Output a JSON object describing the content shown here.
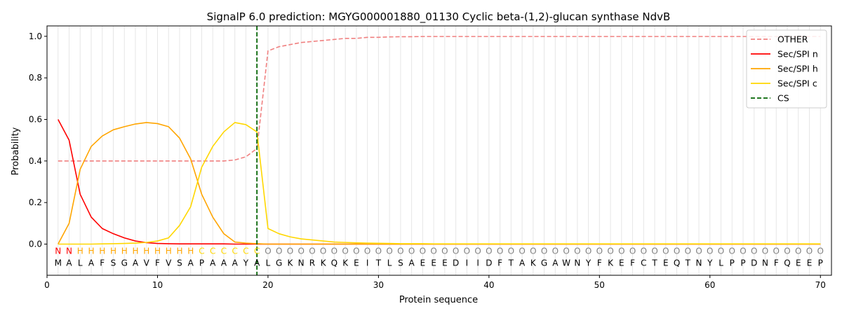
{
  "chart_data": {
    "type": "line",
    "title": "SignalP 6.0 prediction: MGYG000001880_01130 Cyclic beta-(1,2)-glucan synthase NdvB",
    "xlabel": "Protein sequence",
    "ylabel": "Probability",
    "xlim": [
      0,
      71
    ],
    "ylim": [
      -0.15,
      1.05
    ],
    "xticks": [
      0,
      10,
      20,
      30,
      40,
      50,
      60,
      70
    ],
    "yticks": [
      0.0,
      0.2,
      0.4,
      0.6,
      0.8,
      1.0
    ],
    "grid": "vertical lines at each residue position",
    "legend_position": "top-right",
    "x": [
      1,
      2,
      3,
      4,
      5,
      6,
      7,
      8,
      9,
      10,
      11,
      12,
      13,
      14,
      15,
      16,
      17,
      18,
      19,
      20,
      21,
      22,
      23,
      24,
      25,
      26,
      27,
      28,
      29,
      30,
      31,
      32,
      33,
      34,
      35,
      36,
      37,
      38,
      39,
      40,
      41,
      42,
      43,
      44,
      45,
      46,
      47,
      48,
      49,
      50,
      51,
      52,
      53,
      54,
      55,
      56,
      57,
      58,
      59,
      60,
      61,
      62,
      63,
      64,
      65,
      66,
      67,
      68,
      69,
      70
    ],
    "sequence": [
      "M",
      "A",
      "L",
      "A",
      "F",
      "S",
      "G",
      "A",
      "V",
      "F",
      "V",
      "S",
      "A",
      "P",
      "A",
      "A",
      "A",
      "Y",
      "A",
      "L",
      "G",
      "K",
      "N",
      "R",
      "K",
      "Q",
      "K",
      "E",
      "I",
      "T",
      "L",
      "S",
      "A",
      "E",
      "E",
      "E",
      "D",
      "I",
      "I",
      "D",
      "F",
      "T",
      "A",
      "K",
      "G",
      "A",
      "W",
      "N",
      "Y",
      "F",
      "K",
      "E",
      "F",
      "C",
      "T",
      "E",
      "Q",
      "T",
      "N",
      "Y",
      "L",
      "P",
      "P",
      "D",
      "N",
      "F",
      "Q",
      "E",
      "E",
      "P"
    ],
    "labels": [
      "N",
      "N",
      "H",
      "H",
      "H",
      "H",
      "H",
      "H",
      "H",
      "H",
      "H",
      "H",
      "H",
      "C",
      "C",
      "C",
      "C",
      "C",
      "C",
      "O",
      "O",
      "O",
      "O",
      "O",
      "O",
      "O",
      "O",
      "O",
      "O",
      "O",
      "O",
      "O",
      "O",
      "O",
      "O",
      "O",
      "O",
      "O",
      "O",
      "O",
      "O",
      "O",
      "O",
      "O",
      "O",
      "O",
      "O",
      "O",
      "O",
      "O",
      "O",
      "O",
      "O",
      "O",
      "O",
      "O",
      "O",
      "O",
      "O",
      "O",
      "O",
      "O",
      "O",
      "O",
      "O",
      "O",
      "O",
      "O",
      "O",
      "O"
    ],
    "label_colors": {
      "N": "#ff0000",
      "H": "#ffa500",
      "C": "#ffd700",
      "O": "#808080"
    },
    "series": [
      {
        "name": "OTHER",
        "color": "#f08080",
        "dash": "dashed",
        "values": [
          0.4,
          0.4,
          0.4,
          0.4,
          0.4,
          0.4,
          0.4,
          0.4,
          0.4,
          0.4,
          0.4,
          0.4,
          0.4,
          0.4,
          0.4,
          0.4,
          0.405,
          0.42,
          0.46,
          0.93,
          0.95,
          0.96,
          0.97,
          0.975,
          0.98,
          0.985,
          0.99,
          0.99,
          0.995,
          0.995,
          0.997,
          0.998,
          0.998,
          0.999,
          0.999,
          0.999,
          0.999,
          0.999,
          0.999,
          0.999,
          0.999,
          0.999,
          0.999,
          0.999,
          0.999,
          0.999,
          0.999,
          0.999,
          0.999,
          0.999,
          0.999,
          0.999,
          0.999,
          0.999,
          0.999,
          0.999,
          0.999,
          0.999,
          0.999,
          0.999,
          0.999,
          0.999,
          0.999,
          0.999,
          0.999,
          0.999,
          0.999,
          0.999,
          0.999,
          0.999
        ]
      },
      {
        "name": "Sec/SPI n",
        "color": "#ff0000",
        "dash": "solid",
        "values": [
          0.6,
          0.5,
          0.24,
          0.13,
          0.075,
          0.05,
          0.03,
          0.015,
          0.007,
          0.003,
          0.002,
          0.001,
          0.001,
          0.001,
          0.001,
          0.001,
          0.0,
          0.0,
          0.0,
          0.0,
          0.0,
          0.0,
          0.0,
          0.0,
          0.0,
          0.0,
          0.0,
          0.0,
          0.0,
          0.0,
          0.0,
          0.0,
          0.0,
          0.0,
          0.0,
          0.0,
          0.0,
          0.0,
          0.0,
          0.0,
          0.0,
          0.0,
          0.0,
          0.0,
          0.0,
          0.0,
          0.0,
          0.0,
          0.0,
          0.0,
          0.0,
          0.0,
          0.0,
          0.0,
          0.0,
          0.0,
          0.0,
          0.0,
          0.0,
          0.0,
          0.0,
          0.0,
          0.0,
          0.0,
          0.0,
          0.0,
          0.0,
          0.0,
          0.0,
          0.0
        ]
      },
      {
        "name": "Sec/SPI h",
        "color": "#ffa500",
        "dash": "solid",
        "values": [
          0.0,
          0.1,
          0.36,
          0.47,
          0.52,
          0.55,
          0.565,
          0.578,
          0.585,
          0.58,
          0.565,
          0.51,
          0.41,
          0.24,
          0.13,
          0.05,
          0.01,
          0.005,
          0.002,
          0.0,
          0.0,
          0.0,
          0.0,
          0.0,
          0.0,
          0.0,
          0.0,
          0.0,
          0.0,
          0.0,
          0.0,
          0.0,
          0.0,
          0.0,
          0.0,
          0.0,
          0.0,
          0.0,
          0.0,
          0.0,
          0.0,
          0.0,
          0.0,
          0.0,
          0.0,
          0.0,
          0.0,
          0.0,
          0.0,
          0.0,
          0.0,
          0.0,
          0.0,
          0.0,
          0.0,
          0.0,
          0.0,
          0.0,
          0.0,
          0.0,
          0.0,
          0.0,
          0.0,
          0.0,
          0.0,
          0.0,
          0.0,
          0.0,
          0.0,
          0.0
        ]
      },
      {
        "name": "Sec/SPI c",
        "color": "#ffd700",
        "dash": "solid",
        "values": [
          0.0,
          0.0,
          0.0,
          0.0,
          0.001,
          0.002,
          0.003,
          0.005,
          0.008,
          0.015,
          0.03,
          0.09,
          0.18,
          0.37,
          0.47,
          0.54,
          0.585,
          0.575,
          0.54,
          0.075,
          0.05,
          0.035,
          0.025,
          0.02,
          0.015,
          0.01,
          0.008,
          0.006,
          0.005,
          0.004,
          0.003,
          0.002,
          0.002,
          0.002,
          0.001,
          0.001,
          0.001,
          0.001,
          0.001,
          0.001,
          0.001,
          0.001,
          0.001,
          0.001,
          0.001,
          0.001,
          0.001,
          0.001,
          0.001,
          0.001,
          0.001,
          0.001,
          0.001,
          0.001,
          0.001,
          0.001,
          0.001,
          0.001,
          0.001,
          0.001,
          0.001,
          0.001,
          0.001,
          0.001,
          0.001,
          0.001,
          0.001,
          0.001,
          0.001,
          0.001
        ]
      }
    ],
    "cleavage_site": {
      "name": "CS",
      "x": 19,
      "color": "#006400",
      "dash": "dashed"
    }
  }
}
